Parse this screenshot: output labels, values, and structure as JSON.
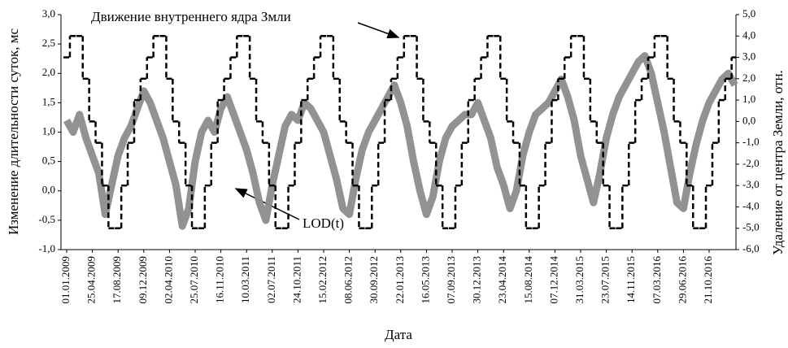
{
  "chart_data": {
    "type": "line",
    "annotations": [
      "Движение внутреннего ядра Змли",
      "LOD(t)"
    ],
    "x_label": "Дата",
    "y_label": "Изменение длительности суток, мс",
    "y2_label": "Удаление от центра Земли, отн.",
    "categories": [
      "01.01.2009",
      null,
      null,
      null,
      "25.04.2009",
      null,
      null,
      null,
      "17.08.2009",
      null,
      null,
      null,
      "09.12.2009",
      null,
      null,
      null,
      "02.04.2010",
      null,
      null,
      null,
      "25.07.2010",
      null,
      null,
      null,
      "16.11.2010",
      null,
      null,
      null,
      "10.03.2011",
      null,
      null,
      null,
      "02.07.2011",
      null,
      null,
      null,
      "24.10.2011",
      null,
      null,
      null,
      "15.02.2012",
      null,
      null,
      null,
      "08.06.2012",
      null,
      null,
      null,
      "30.09.2012",
      null,
      null,
      null,
      "22.01.2013",
      null,
      null,
      null,
      "16.05.2013",
      null,
      null,
      null,
      "07.09.2013",
      null,
      null,
      null,
      "30.12.2013",
      null,
      null,
      null,
      "23.04.2014",
      null,
      null,
      null,
      "15.08.2014",
      null,
      null,
      null,
      "07.12.2014",
      null,
      null,
      null,
      "31.03.2015",
      null,
      null,
      null,
      "23.07.2015",
      null,
      null,
      null,
      "14.11.2015",
      null,
      null,
      null,
      "07.03.2016",
      null,
      null,
      null,
      "29.06.2016",
      null,
      null,
      null,
      "21.10.2016",
      null,
      null,
      null,
      null
    ],
    "series": [
      {
        "name": "LOD(t)",
        "color": "#8c8c8c",
        "axis": "y",
        "values": [
          1.2,
          1.0,
          1.3,
          0.9,
          0.6,
          0.3,
          -0.4,
          0.1,
          0.6,
          0.9,
          1.1,
          1.4,
          1.7,
          1.5,
          1.2,
          0.9,
          0.5,
          0.1,
          -0.6,
          -0.3,
          0.5,
          1.0,
          1.2,
          1.0,
          1.4,
          1.6,
          1.3,
          1.0,
          0.7,
          0.3,
          -0.2,
          -0.5,
          0.1,
          0.6,
          1.1,
          1.3,
          1.2,
          1.5,
          1.4,
          1.2,
          1.0,
          0.6,
          0.2,
          -0.3,
          -0.4,
          0.2,
          0.7,
          1.0,
          1.2,
          1.4,
          1.6,
          1.8,
          1.5,
          1.1,
          0.5,
          0.0,
          -0.4,
          -0.1,
          0.5,
          0.9,
          1.1,
          1.2,
          1.3,
          1.3,
          1.5,
          1.2,
          0.9,
          0.4,
          0.1,
          -0.3,
          0.0,
          0.6,
          1.0,
          1.3,
          1.4,
          1.5,
          1.7,
          1.9,
          1.6,
          1.2,
          0.6,
          0.2,
          -0.2,
          0.3,
          0.9,
          1.3,
          1.6,
          1.8,
          2.0,
          2.2,
          2.3,
          2.0,
          1.5,
          1.0,
          0.4,
          -0.2,
          -0.3,
          0.3,
          0.8,
          1.2,
          1.5,
          1.7,
          1.9,
          2.0,
          1.8
        ]
      },
      {
        "name": "Движение внутреннего ядра Змли",
        "color": "#000000",
        "axis": "y2",
        "values": [
          3,
          4,
          4,
          2,
          0,
          -1,
          -3,
          -5,
          -5,
          -3,
          -1,
          1,
          2,
          3,
          4,
          4,
          2,
          0,
          -1,
          -3,
          -5,
          -5,
          -3,
          -1,
          1,
          2,
          3,
          4,
          4,
          2,
          0,
          -1,
          -3,
          -5,
          -5,
          -3,
          -1,
          1,
          2,
          3,
          4,
          4,
          2,
          0,
          -1,
          -3,
          -5,
          -5,
          -3,
          -1,
          1,
          2,
          3,
          4,
          4,
          2,
          0,
          -1,
          -3,
          -5,
          -5,
          -3,
          -1,
          1,
          2,
          3,
          4,
          4,
          2,
          0,
          -1,
          -3,
          -5,
          -5,
          -3,
          -1,
          1,
          2,
          3,
          4,
          4,
          2,
          0,
          -1,
          -3,
          -5,
          -5,
          -3,
          -1,
          1,
          2,
          3,
          4,
          4,
          2,
          0,
          -1,
          -3,
          -5,
          -5,
          -3,
          -1,
          1,
          2,
          3
        ]
      }
    ],
    "ylim": [
      -1,
      3
    ],
    "yticks": [
      {
        "value": -1,
        "label": "-1,0"
      },
      {
        "value": -0.5,
        "label": "-0,5"
      },
      {
        "value": 0,
        "label": "0,0"
      },
      {
        "value": 0.5,
        "label": "0,5"
      },
      {
        "value": 1,
        "label": "1,0"
      },
      {
        "value": 1.5,
        "label": "1,5"
      },
      {
        "value": 2,
        "label": "2,0"
      },
      {
        "value": 2.5,
        "label": "2,5"
      },
      {
        "value": 3,
        "label": "3,0"
      }
    ],
    "y2lim": [
      -6,
      5
    ],
    "y2ticks": [
      {
        "value": -6,
        "label": "-6,0"
      },
      {
        "value": -5,
        "label": "-5,0"
      },
      {
        "value": -4,
        "label": "-4,0"
      },
      {
        "value": -3,
        "label": "-3,0"
      },
      {
        "value": -2,
        "label": "-2,0"
      },
      {
        "value": -1,
        "label": "-1,0"
      },
      {
        "value": 0,
        "label": "0,0"
      },
      {
        "value": 1,
        "label": "1,0"
      },
      {
        "value": 2,
        "label": "2,0"
      },
      {
        "value": 3,
        "label": "3,0"
      },
      {
        "value": 4,
        "label": "4,0"
      },
      {
        "value": 5,
        "label": "5,0"
      }
    ],
    "grid": false
  }
}
